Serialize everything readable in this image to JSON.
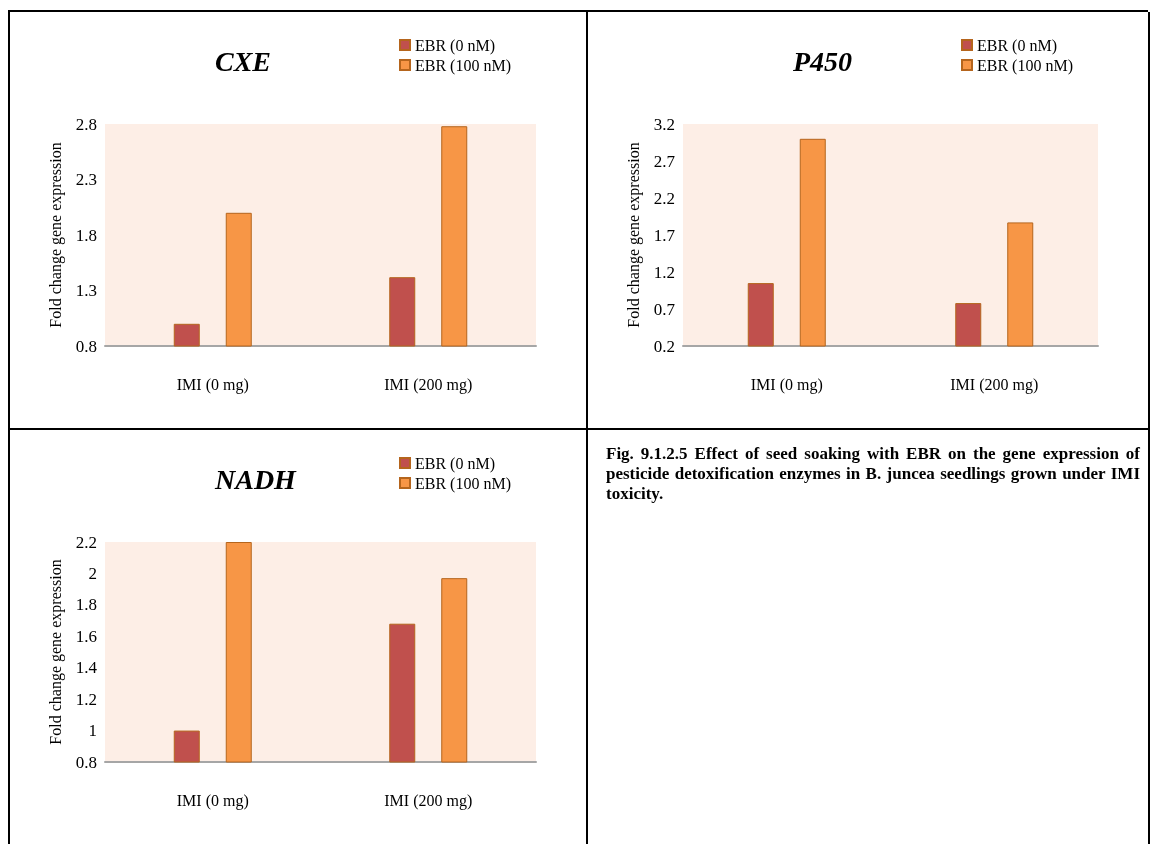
{
  "chart_data": [
    {
      "type": "bar",
      "title": "CXE",
      "ylabel": "Fold change gene expression",
      "categories": [
        "IMI (0 mg)",
        "IMI (200 mg)"
      ],
      "series": [
        {
          "name": "EBR (0 nM)",
          "color": "#c0504d",
          "values": [
            1.0,
            1.42
          ]
        },
        {
          "name": "EBR (100 nM)",
          "color": "#f79646",
          "values": [
            2.0,
            2.78
          ]
        }
      ],
      "ylim": [
        0.8,
        2.8
      ],
      "yticks": [
        0.8,
        1.3,
        1.8,
        2.3,
        2.8
      ],
      "grid": false,
      "legend": "top right"
    },
    {
      "type": "bar",
      "title": "P450",
      "ylabel": "Fold change gene expression",
      "categories": [
        "IMI (0 mg)",
        "IMI (200 mg)"
      ],
      "series": [
        {
          "name": "EBR (0 nM)",
          "color": "#c0504d",
          "values": [
            1.05,
            0.78
          ]
        },
        {
          "name": "EBR (100 nM)",
          "color": "#f79646",
          "values": [
            3.0,
            1.87
          ]
        }
      ],
      "ylim": [
        0.2,
        3.2
      ],
      "yticks": [
        0.2,
        0.7,
        1.2,
        1.7,
        2.2,
        2.7,
        3.2
      ],
      "grid": false,
      "legend": "top right"
    },
    {
      "type": "bar",
      "title": "NADH",
      "ylabel": "Fold change gene expression",
      "categories": [
        "IMI (0 mg)",
        "IMI (200 mg)"
      ],
      "series": [
        {
          "name": "EBR (0 nM)",
          "color": "#c0504d",
          "values": [
            1.0,
            1.68
          ]
        },
        {
          "name": "EBR (100 nM)",
          "color": "#f79646",
          "values": [
            2.2,
            1.97
          ]
        }
      ],
      "ylim": [
        0.8,
        2.2
      ],
      "yticks": [
        0.8,
        1,
        1.2,
        1.4,
        1.6,
        1.8,
        2,
        2.2
      ],
      "grid": false,
      "legend": "top right"
    },
    {
      "type": "other",
      "annotations": [
        "Fig. 9.1.2.5 Effect of seed soaking with EBR on the gene expression of pesticide detoxification enzymes in B. juncea seedlings grown under IMI toxicity."
      ]
    }
  ]
}
